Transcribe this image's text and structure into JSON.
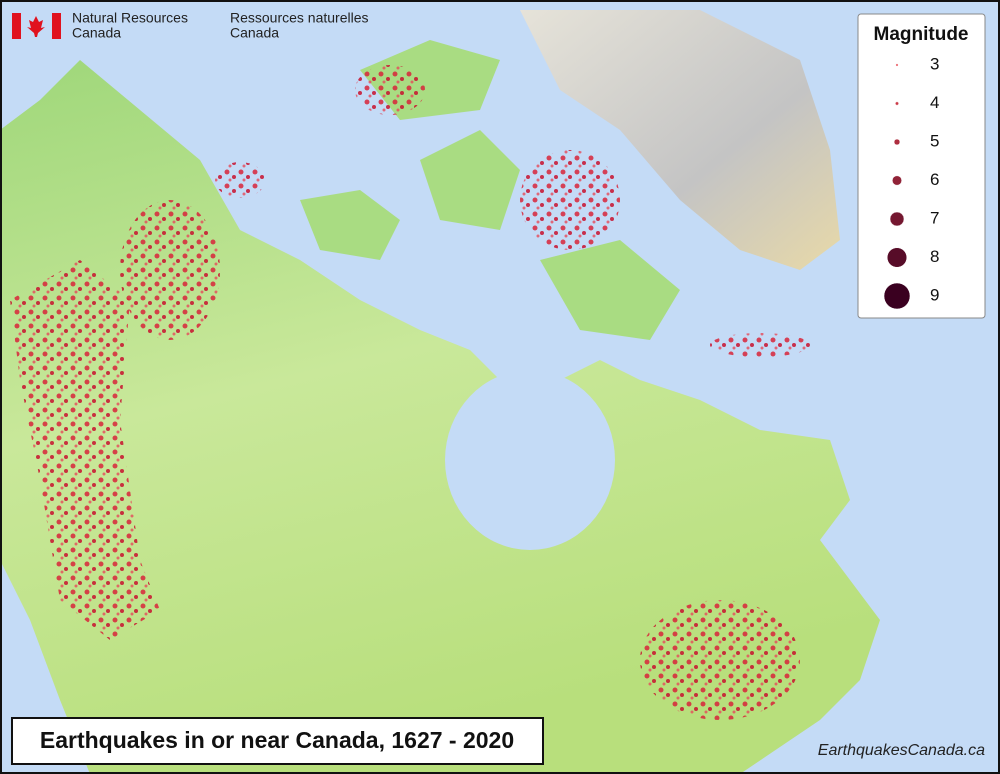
{
  "header": {
    "english": [
      "Natural Resources",
      "Canada"
    ],
    "french": [
      "Ressources naturelles",
      "Canada"
    ]
  },
  "legend": {
    "title": "Magnitude",
    "items": [
      3,
      4,
      5,
      6,
      7,
      8,
      9
    ]
  },
  "title": "Earthquakes in or near Canada, 1627 - 2020",
  "credit": "EarthquakesCanada.ca"
}
